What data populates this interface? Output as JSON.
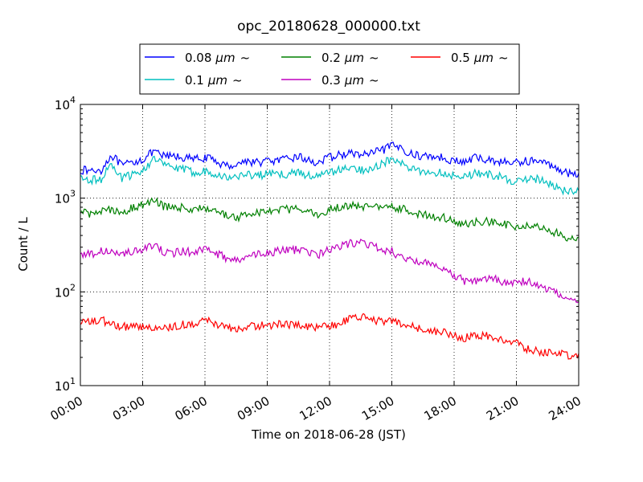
{
  "chart_data": {
    "type": "line",
    "title": "opc_20180628_000000.txt",
    "xlabel": "Time on 2018-06-28 (JST)",
    "ylabel": "Count / L",
    "y_scale": "log",
    "ylim": [
      10,
      10000
    ],
    "xlim": [
      "2018-06-28 00:00",
      "2018-06-29 00:00"
    ],
    "grid": true,
    "legend_placement": "top-center",
    "x_ticks": [
      "00:00",
      "03:00",
      "06:00",
      "09:00",
      "12:00",
      "15:00",
      "18:00",
      "21:00",
      "24:00"
    ],
    "y_ticks": [
      {
        "base": "10",
        "exp": "1"
      },
      {
        "base": "10",
        "exp": "2"
      },
      {
        "base": "10",
        "exp": "3"
      },
      {
        "base": "10",
        "exp": "4"
      }
    ],
    "x": [
      "00:00",
      "00:30",
      "01:00",
      "01:30",
      "02:00",
      "02:30",
      "03:00",
      "03:30",
      "04:00",
      "04:30",
      "05:00",
      "05:30",
      "06:00",
      "06:30",
      "07:00",
      "07:30",
      "08:00",
      "08:30",
      "09:00",
      "09:30",
      "10:00",
      "10:30",
      "11:00",
      "11:30",
      "12:00",
      "12:30",
      "13:00",
      "13:30",
      "14:00",
      "14:30",
      "15:00",
      "15:30",
      "16:00",
      "16:30",
      "17:00",
      "17:30",
      "18:00",
      "18:30",
      "19:00",
      "19:30",
      "20:00",
      "20:30",
      "21:00",
      "21:30",
      "22:00",
      "22:30",
      "23:00",
      "23:30",
      "24:00"
    ],
    "series": [
      {
        "name": "0.08",
        "unit": "μm",
        "suffix": "~",
        "color": "#0000ff",
        "values": [
          2000,
          1950,
          2000,
          2900,
          2200,
          2400,
          2600,
          3100,
          2800,
          2800,
          2700,
          2600,
          2700,
          2500,
          2200,
          2300,
          2500,
          2400,
          2500,
          2500,
          2600,
          2800,
          2500,
          2400,
          2700,
          2900,
          3000,
          2900,
          3000,
          3200,
          3600,
          3400,
          2900,
          2800,
          2800,
          2700,
          2500,
          2400,
          2700,
          2600,
          2500,
          2400,
          2400,
          2500,
          2500,
          2300,
          2100,
          1800,
          1850
        ]
      },
      {
        "name": "0.1",
        "unit": "μm",
        "suffix": "~",
        "color": "#00bfbf",
        "values": [
          1600,
          1550,
          1600,
          2300,
          1600,
          1800,
          2000,
          2600,
          2300,
          2100,
          2000,
          1900,
          1950,
          1850,
          1650,
          1700,
          1800,
          1750,
          1800,
          1800,
          1800,
          1900,
          1750,
          1700,
          1900,
          2000,
          2100,
          2000,
          2100,
          2300,
          2600,
          2300,
          2000,
          1900,
          1900,
          1850,
          1750,
          1700,
          1850,
          1800,
          1750,
          1600,
          1500,
          1550,
          1600,
          1450,
          1300,
          1150,
          1200
        ]
      },
      {
        "name": "0.2",
        "unit": "μm",
        "suffix": "~",
        "color": "#008000",
        "values": [
          700,
          680,
          750,
          760,
          720,
          780,
          850,
          950,
          820,
          780,
          800,
          760,
          780,
          740,
          650,
          620,
          680,
          700,
          720,
          760,
          760,
          780,
          700,
          680,
          760,
          800,
          830,
          800,
          830,
          800,
          800,
          770,
          700,
          660,
          640,
          620,
          560,
          530,
          560,
          560,
          550,
          520,
          500,
          500,
          500,
          470,
          420,
          370,
          380
        ]
      },
      {
        "name": "0.3",
        "unit": "μm",
        "suffix": "~",
        "color": "#bf00bf",
        "values": [
          260,
          250,
          270,
          265,
          250,
          270,
          290,
          310,
          270,
          260,
          270,
          260,
          290,
          260,
          230,
          210,
          230,
          250,
          260,
          270,
          280,
          280,
          260,
          250,
          280,
          300,
          330,
          340,
          320,
          280,
          270,
          230,
          210,
          210,
          200,
          180,
          150,
          130,
          130,
          140,
          135,
          125,
          130,
          130,
          120,
          105,
          95,
          80,
          78
        ]
      },
      {
        "name": "0.5",
        "unit": "μm",
        "suffix": "~",
        "color": "#ff0000",
        "values": [
          48,
          47,
          50,
          45,
          42,
          44,
          43,
          42,
          43,
          42,
          45,
          46,
          50,
          45,
          41,
          40,
          42,
          43,
          44,
          45,
          45,
          44,
          42,
          41,
          44,
          46,
          52,
          54,
          52,
          48,
          50,
          46,
          42,
          40,
          38,
          37,
          34,
          32,
          34,
          34,
          32,
          31,
          28,
          25,
          23,
          22,
          22,
          21,
          22
        ]
      }
    ]
  }
}
